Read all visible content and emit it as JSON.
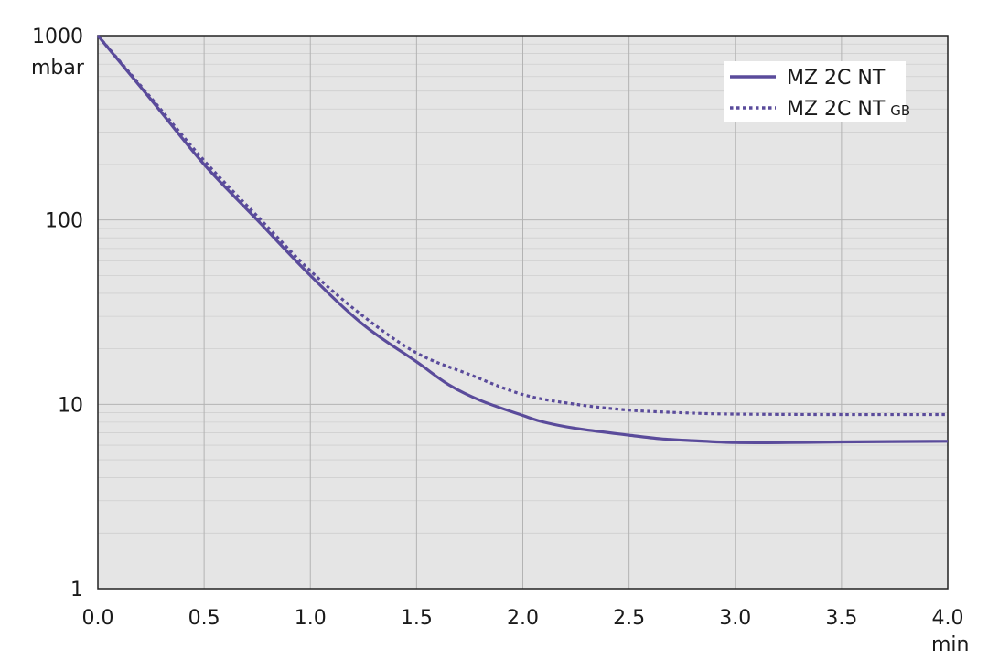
{
  "chart_data": {
    "type": "line",
    "title": "",
    "xlabel": "min",
    "ylabel": "mbar",
    "xscale": "linear",
    "yscale": "log",
    "xlim": [
      0,
      4
    ],
    "ylim": [
      1,
      1000
    ],
    "x_ticks": [
      0,
      0.5,
      1.0,
      1.5,
      2.0,
      2.5,
      3.0,
      3.5,
      4.0
    ],
    "x_tick_labels": [
      "0.0",
      "0.5",
      "1.0",
      "1.5",
      "2.0",
      "2.5",
      "3.0",
      "3.5",
      "4.0"
    ],
    "y_ticks": [
      1,
      10,
      100,
      1000
    ],
    "y_tick_labels": [
      "1",
      "10",
      "100",
      "1000"
    ],
    "grid": true,
    "legend_position": "top-right",
    "series": [
      {
        "name": "MZ 2C NT",
        "legend_suffix": "",
        "style": "solid",
        "color": "#5a4b9b",
        "x": [
          0,
          0.25,
          0.5,
          0.75,
          1.0,
          1.25,
          1.5,
          1.65,
          1.8,
          2.0,
          2.1,
          2.25,
          2.5,
          2.65,
          2.8,
          3.0,
          3.25,
          3.5,
          4.0
        ],
        "y": [
          1000,
          450,
          200,
          100,
          50,
          27,
          17,
          12.8,
          10.5,
          8.7,
          8.0,
          7.4,
          6.8,
          6.5,
          6.35,
          6.2,
          6.2,
          6.25,
          6.3
        ]
      },
      {
        "name": "MZ 2C NT",
        "legend_suffix": "GB",
        "style": "dotted",
        "color": "#5a4b9b",
        "x": [
          0,
          0.25,
          0.5,
          0.75,
          1.0,
          1.25,
          1.5,
          1.75,
          2.0,
          2.25,
          2.5,
          2.75,
          3.0,
          3.5,
          4.0
        ],
        "y": [
          1000,
          460,
          210,
          105,
          53,
          30,
          19,
          14.5,
          11.3,
          10.0,
          9.3,
          9.0,
          8.85,
          8.8,
          8.8
        ]
      }
    ]
  }
}
